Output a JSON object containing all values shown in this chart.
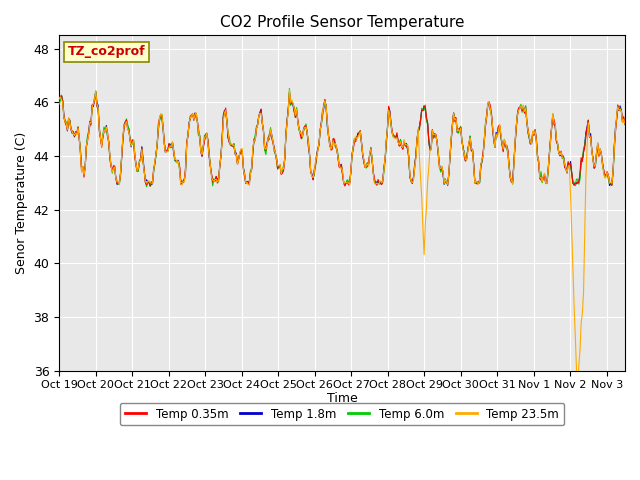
{
  "title": "CO2 Profile Sensor Temperature",
  "ylabel": "Senor Temperature (C)",
  "xlabel": "Time",
  "ylim": [
    36,
    48.5
  ],
  "yticks": [
    36,
    38,
    40,
    42,
    44,
    46,
    48
  ],
  "legend_label": "TZ_co2prof",
  "series_labels": [
    "Temp 0.35m",
    "Temp 1.8m",
    "Temp 6.0m",
    "Temp 23.5m"
  ],
  "series_colors": [
    "#ff0000",
    "#0000cc",
    "#00cc00",
    "#ffaa00"
  ],
  "line_width": 0.8,
  "bg_color": "#e8e8e8",
  "legend_box_color": "#ffffcc",
  "legend_box_edge": "#888800",
  "n_points": 480,
  "xtick_positions": [
    0,
    1,
    2,
    3,
    4,
    5,
    6,
    7,
    8,
    9,
    10,
    11,
    12,
    13,
    14,
    15
  ],
  "xtick_labels": [
    "Oct 19",
    "Oct 20",
    "Oct 21",
    "Oct 22",
    "Oct 23",
    "Oct 24",
    "Oct 25",
    "Oct 26",
    "Oct 27",
    "Oct 28",
    "Oct 29",
    "Oct 30",
    "Oct 31",
    "Nov 1",
    "Nov 2",
    "Nov 3"
  ]
}
